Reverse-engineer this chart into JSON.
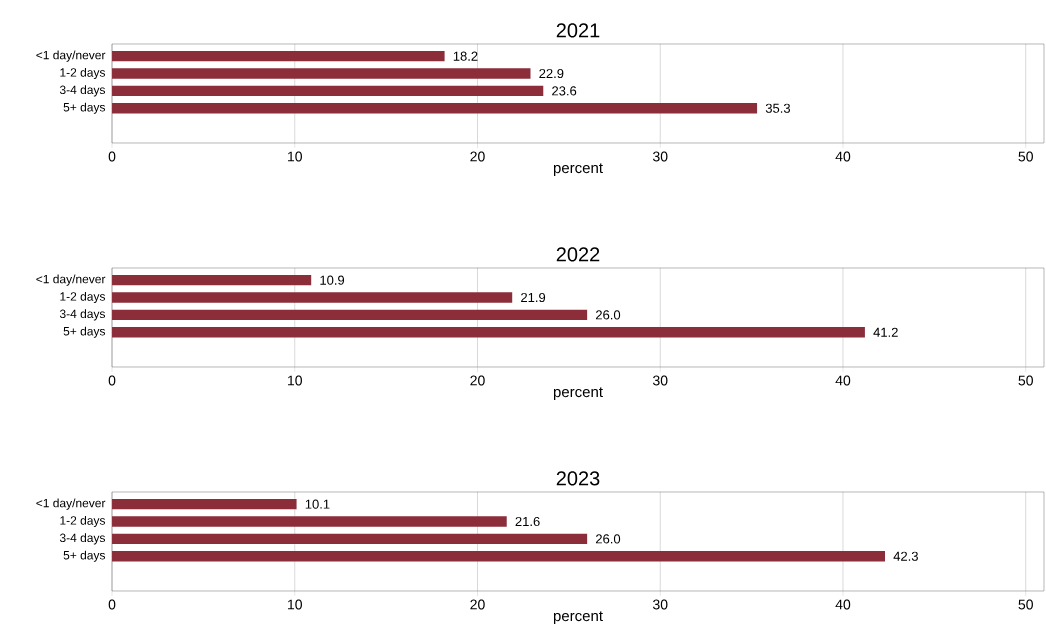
{
  "chart_data": [
    {
      "type": "bar",
      "orientation": "horizontal",
      "title": "2021",
      "categories": [
        "<1 day/never",
        "1-2 days",
        "3-4 days",
        "5+ days"
      ],
      "values": [
        18.2,
        22.9,
        23.6,
        35.3
      ],
      "value_labels": [
        "18.2",
        "22.9",
        "23.6",
        "35.3"
      ],
      "color": "#8b2e3a",
      "xlim": [
        0,
        51
      ],
      "xticks": [
        0,
        10,
        20,
        30,
        40,
        50
      ],
      "xlabel": "percent",
      "grid": "x"
    },
    {
      "type": "bar",
      "orientation": "horizontal",
      "title": "2022",
      "categories": [
        "<1 day/never",
        "1-2 days",
        "3-4 days",
        "5+ days"
      ],
      "values": [
        10.9,
        21.9,
        26.0,
        41.2
      ],
      "value_labels": [
        "10.9",
        "21.9",
        "26.0",
        "41.2"
      ],
      "color": "#8b2e3a",
      "xlim": [
        0,
        51
      ],
      "xticks": [
        0,
        10,
        20,
        30,
        40,
        50
      ],
      "xlabel": "percent",
      "grid": "x"
    },
    {
      "type": "bar",
      "orientation": "horizontal",
      "title": "2023",
      "categories": [
        "<1 day/never",
        "1-2 days",
        "3-4 days",
        "5+ days"
      ],
      "values": [
        10.1,
        21.6,
        26.0,
        42.3
      ],
      "value_labels": [
        "10.1",
        "21.6",
        "26.0",
        "42.3"
      ],
      "color": "#8b2e3a",
      "xlim": [
        0,
        51
      ],
      "xticks": [
        0,
        10,
        20,
        30,
        40,
        50
      ],
      "xlabel": "percent",
      "grid": "x"
    }
  ]
}
